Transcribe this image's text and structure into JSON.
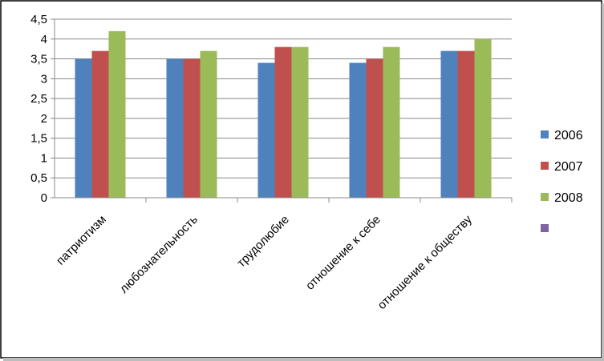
{
  "chart_data": {
    "type": "bar",
    "categories": [
      "патриотизм",
      "любознательность",
      "трудолюбие",
      "отношение к себе",
      "отношение к обществу"
    ],
    "series": [
      {
        "name": "2006",
        "color": "#4F81BD",
        "values": [
          3.5,
          3.5,
          3.4,
          3.4,
          3.7
        ]
      },
      {
        "name": "2007",
        "color": "#C0504D",
        "values": [
          3.7,
          3.5,
          3.8,
          3.5,
          3.7
        ]
      },
      {
        "name": "2008",
        "color": "#9BBB59",
        "values": [
          4.2,
          3.7,
          3.8,
          3.8,
          4.0
        ]
      },
      {
        "name": "",
        "color": "#8064A2",
        "values": [
          0,
          0,
          0,
          0,
          0
        ]
      }
    ],
    "y_ticks": [
      "0",
      "0,5",
      "1",
      "1,5",
      "2",
      "2,5",
      "3",
      "3,5",
      "4",
      "4,5"
    ],
    "ylim": [
      0,
      4.5
    ],
    "grid": true,
    "legend_position": "right",
    "title": "",
    "xlabel": "",
    "ylabel": ""
  }
}
